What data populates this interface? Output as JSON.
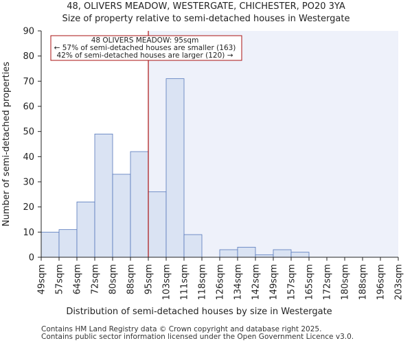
{
  "title_line1": "48, OLIVERS MEADOW, WESTERGATE, CHICHESTER, PO20 3YA",
  "title_line2": "Size of property relative to semi-detached houses in Westergate",
  "footer_line1": "Contains HM Land Registry data © Crown copyright and database right 2025.",
  "footer_line2": "Contains public sector information licensed under the Open Government Licence v3.0.",
  "chart_data": {
    "type": "bar",
    "title": "Size of property relative to semi-detached houses in Westergate",
    "xlabel": "Distribution of semi-detached houses by size in Westergate",
    "ylabel": "Number of semi-detached properties",
    "ylim": [
      0,
      90
    ],
    "yticks": [
      0,
      10,
      20,
      30,
      40,
      50,
      60,
      70,
      80,
      90
    ],
    "bin_edge_labels": [
      "49sqm",
      "57sqm",
      "64sqm",
      "72sqm",
      "80sqm",
      "88sqm",
      "95sqm",
      "103sqm",
      "111sqm",
      "118sqm",
      "126sqm",
      "134sqm",
      "142sqm",
      "149sqm",
      "157sqm",
      "165sqm",
      "172sqm",
      "180sqm",
      "188sqm",
      "196sqm",
      "203sqm"
    ],
    "values": [
      10,
      11,
      22,
      49,
      33,
      42,
      26,
      71,
      9,
      0,
      3,
      4,
      1,
      3,
      2,
      0,
      0,
      0,
      0,
      0
    ],
    "marker_edge_index": 6,
    "annotation": {
      "line1": "48 OLIVERS MEADOW: 95sqm",
      "line2": "← 57% of semi-detached houses are smaller (163)",
      "line3": "42% of semi-detached houses are larger (120) →"
    },
    "colors": {
      "bar_fill": "#dae3f3",
      "bar_stroke": "#5577bb",
      "marker_line": "#aa1111",
      "right_shade": "#eef1fa",
      "axis": "#222222"
    }
  }
}
